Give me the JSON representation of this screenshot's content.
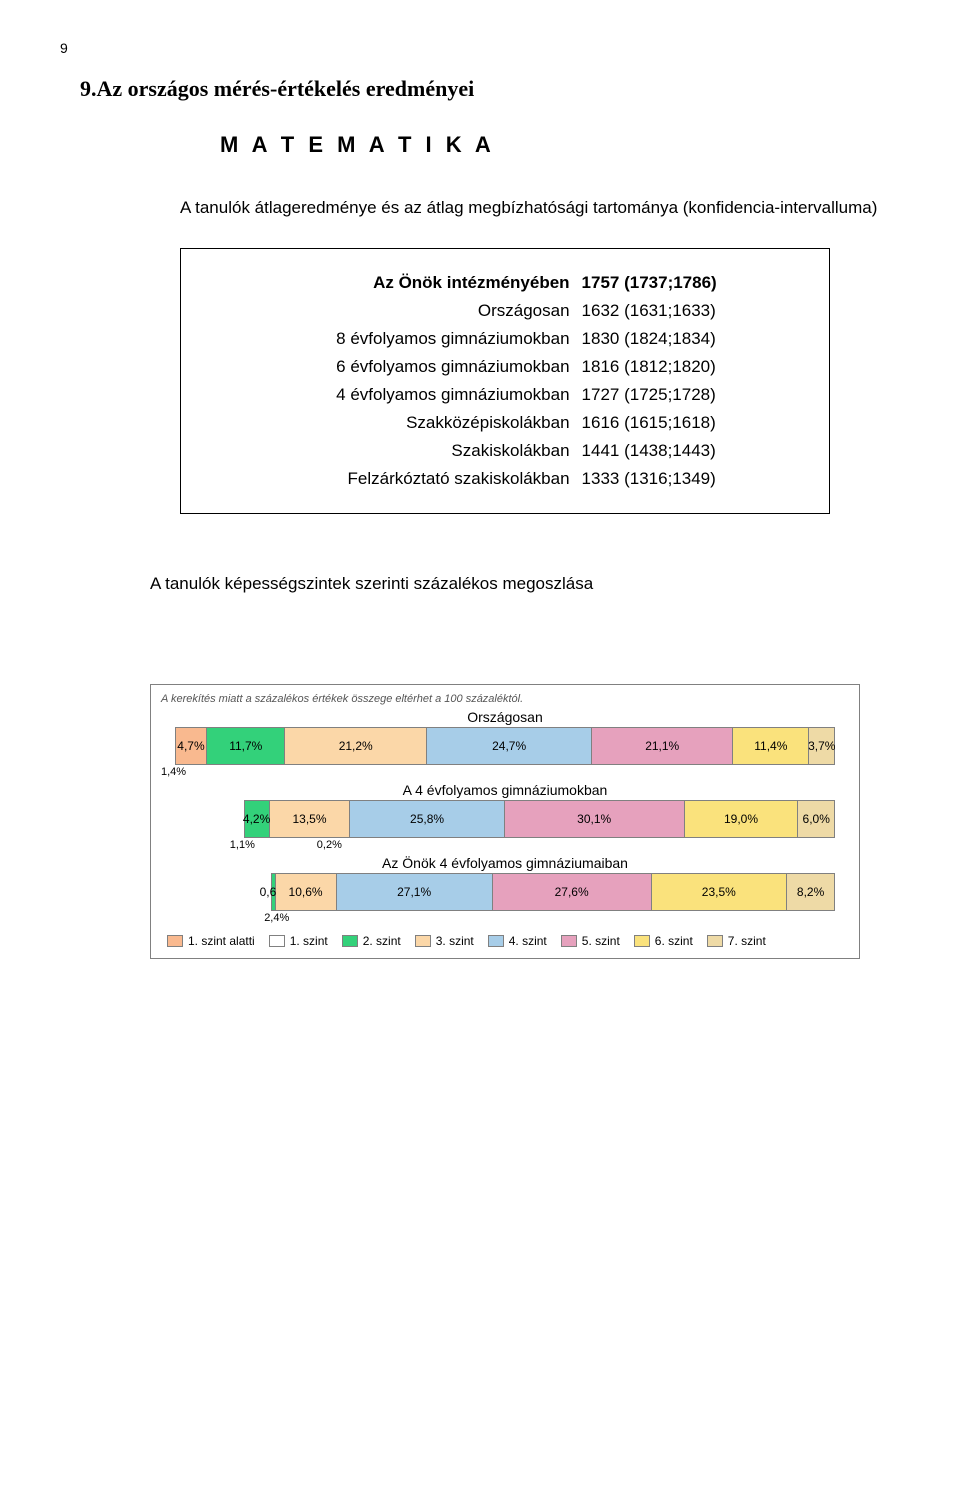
{
  "page_number": "9",
  "heading1": "9.Az országos mérés-értékelés eredményei",
  "heading2": "M A T E M A T I K A",
  "sub_heading": "A tanulók átlageredménye és az átlag megbízhatósági tartománya (konfidencia-intervalluma)",
  "table": {
    "rows": [
      {
        "label": "Az Önök intézményében",
        "value": "1757 (1737;1786)"
      },
      {
        "label": "Országosan",
        "value": "1632 (1631;1633)"
      },
      {
        "label": "8 évfolyamos gimnáziumokban",
        "value": "1830 (1824;1834)"
      },
      {
        "label": "6 évfolyamos gimnáziumokban",
        "value": "1816 (1812;1820)"
      },
      {
        "label": "4 évfolyamos gimnáziumokban",
        "value": "1727 (1725;1728)"
      },
      {
        "label": "Szakközépiskolákban",
        "value": "1616 (1615;1618)"
      },
      {
        "label": "Szakiskolákban",
        "value": "1441 (1438;1443)"
      },
      {
        "label": "Felzárkóztató szakiskolákban",
        "value": "1333 (1316;1349)"
      }
    ]
  },
  "sub_heading2": "A tanulók képességszintek szerinti százalékos megoszlása",
  "chart": {
    "note": "A kerekítés miatt a százalékos értékek összege eltérhet a 100 százaléktól.",
    "colors": {
      "szint_alatti": "#f9b98f",
      "s1": "#ffffff",
      "s2": "#33d17a",
      "s3": "#fbd7a8",
      "s4": "#a7cde8",
      "s5": "#e6a1bd",
      "s6": "#fae27c",
      "s7": "#eedaa6",
      "border": "#808080"
    },
    "groups": [
      {
        "title": "Országosan",
        "left_offset_pct": 2,
        "width_pct": 96,
        "under": [
          {
            "text": "1,4%",
            "left_pct": 0
          }
        ],
        "segments": [
          {
            "color": "szint_alatti",
            "pct": 4.7,
            "label": "4,7%"
          },
          {
            "color": "s2",
            "pct": 11.7,
            "label": "11,7%"
          },
          {
            "color": "s3",
            "pct": 21.2,
            "label": "21,2%"
          },
          {
            "color": "s4",
            "pct": 24.7,
            "label": "24,7%"
          },
          {
            "color": "s5",
            "pct": 21.1,
            "label": "21,1%"
          },
          {
            "color": "s6",
            "pct": 11.4,
            "label": "11,4%"
          },
          {
            "color": "s7",
            "pct": 3.7,
            "label": "3,7%"
          }
        ]
      },
      {
        "title": "A 4 évfolyamos gimnáziumokban",
        "left_offset_pct": 12,
        "width_pct": 86,
        "under": [
          {
            "text": "1,1%",
            "left_pct": 10
          },
          {
            "text": "0,2%",
            "left_pct": 9
          }
        ],
        "segments": [
          {
            "color": "s2",
            "pct": 4.2,
            "label": "4,2%"
          },
          {
            "color": "s3",
            "pct": 13.5,
            "label": "13,5%"
          },
          {
            "color": "s4",
            "pct": 25.8,
            "label": "25,8%"
          },
          {
            "color": "s5",
            "pct": 30.1,
            "label": "30,1%"
          },
          {
            "color": "s6",
            "pct": 19.0,
            "label": "19,0%"
          },
          {
            "color": "s7",
            "pct": 6.0,
            "label": "6,0%"
          }
        ]
      },
      {
        "title": "Az Önök 4 évfolyamos gimnáziumaiban",
        "left_offset_pct": 16,
        "width_pct": 82,
        "under": [
          {
            "text": "2,4%",
            "left_pct": 15
          }
        ],
        "segments": [
          {
            "color": "s2",
            "pct": 0.6,
            "label": "0,6%"
          },
          {
            "color": "s3",
            "pct": 10.6,
            "label": "10,6%"
          },
          {
            "color": "s4",
            "pct": 27.1,
            "label": "27,1%"
          },
          {
            "color": "s5",
            "pct": 27.6,
            "label": "27,6%"
          },
          {
            "color": "s6",
            "pct": 23.5,
            "label": "23,5%"
          },
          {
            "color": "s7",
            "pct": 8.2,
            "label": "8,2%"
          }
        ]
      }
    ],
    "legend": [
      {
        "color": "szint_alatti",
        "label": "1. szint alatti"
      },
      {
        "color": "s1",
        "label": "1. szint"
      },
      {
        "color": "s2",
        "label": "2. szint"
      },
      {
        "color": "s3",
        "label": "3. szint"
      },
      {
        "color": "s4",
        "label": "4. szint"
      },
      {
        "color": "s5",
        "label": "5. szint"
      },
      {
        "color": "s6",
        "label": "6. szint"
      },
      {
        "color": "s7",
        "label": "7. szint"
      }
    ]
  }
}
